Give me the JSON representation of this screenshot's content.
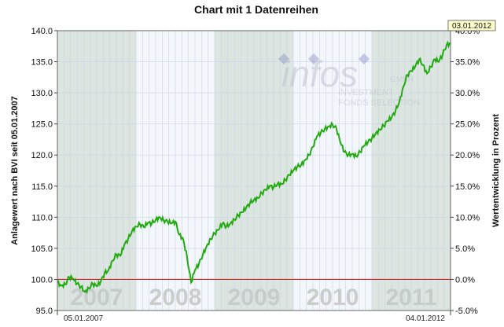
{
  "chart_data": {
    "type": "line",
    "title": "Chart mit 1 Datenreihen",
    "ylabel_left": "Anlagewert nach BVI seit 05.01.2007",
    "ylabel_right": "Wertentwicklung in Prozent",
    "ylim_left": [
      95.0,
      140.0
    ],
    "ylim_right": [
      -5.0,
      40.0
    ],
    "left_ticks": [
      "95.0",
      "100.0",
      "105.0",
      "110.0",
      "115.0",
      "120.0",
      "125.0",
      "130.0",
      "135.0",
      "140.0"
    ],
    "right_ticks": [
      "-5.0%",
      "0.0%",
      "5.0%",
      "10.0%",
      "15.0%",
      "20.0%",
      "25.0%",
      "30.0%",
      "35.0%",
      "40.0%"
    ],
    "x_start_label": "05.01.2007",
    "x_end_label": "04.01.2012",
    "end_date_marker": "03.01.2012",
    "year_labels": [
      "2007",
      "2008",
      "2009",
      "2010",
      "2011"
    ],
    "baseline_value": 100.0,
    "grid": true,
    "line_color": "#22aa11",
    "baseline_color": "#cc2222",
    "band_dark": "#dde5e0",
    "band_light": "#f3f7fc",
    "series": [
      {
        "x": [
          0,
          0.01,
          0.02,
          0.03,
          0.04,
          0.05,
          0.06,
          0.07,
          0.08,
          0.09,
          0.1,
          0.11,
          0.12,
          0.13,
          0.14,
          0.15,
          0.16,
          0.17,
          0.18,
          0.19,
          0.2,
          0.21,
          0.22,
          0.23,
          0.24,
          0.25,
          0.26,
          0.27,
          0.28,
          0.29,
          0.3,
          0.31,
          0.32,
          0.33,
          0.34,
          0.35,
          0.36,
          0.37,
          0.38,
          0.39,
          0.4,
          0.41,
          0.42,
          0.43,
          0.44,
          0.45,
          0.46,
          0.47,
          0.48,
          0.49,
          0.5,
          0.51,
          0.52,
          0.53,
          0.54,
          0.55,
          0.56,
          0.57,
          0.58,
          0.59,
          0.6,
          0.61,
          0.62,
          0.63,
          0.64,
          0.65,
          0.66,
          0.67,
          0.68,
          0.69,
          0.7,
          0.71,
          0.72,
          0.73,
          0.74,
          0.75,
          0.76,
          0.77,
          0.78,
          0.79,
          0.8,
          0.81,
          0.82,
          0.83,
          0.84,
          0.85,
          0.86,
          0.87,
          0.88,
          0.89,
          0.9,
          0.91,
          0.92,
          0.93,
          0.94,
          0.95,
          0.96,
          0.97,
          0.98,
          0.99,
          1.0
        ],
        "values": [
          99.5,
          99.0,
          99.2,
          100.4,
          100.1,
          99.3,
          98.8,
          98.0,
          98.6,
          99.3,
          98.9,
          99.6,
          101.0,
          101.5,
          103.0,
          104.0,
          103.8,
          105.5,
          106.5,
          107.8,
          108.5,
          108.9,
          108.4,
          109.1,
          109.0,
          109.6,
          110.0,
          109.5,
          109.3,
          109.0,
          109.3,
          107.2,
          106.5,
          103.5,
          99.5,
          101.5,
          102.5,
          104.0,
          105.4,
          106.5,
          107.4,
          108.0,
          109.0,
          108.5,
          109.0,
          109.6,
          110.3,
          110.8,
          111.5,
          112.3,
          112.8,
          113.1,
          113.9,
          114.4,
          115.0,
          114.8,
          115.4,
          115.3,
          116.0,
          116.8,
          117.5,
          118.1,
          118.4,
          119.2,
          120.0,
          121.3,
          123.0,
          123.6,
          124.2,
          124.6,
          124.9,
          124.2,
          122.0,
          120.5,
          120.0,
          120.2,
          119.8,
          120.5,
          121.5,
          122.1,
          122.7,
          123.5,
          124.1,
          124.7,
          125.5,
          126.0,
          127.1,
          128.6,
          131.0,
          132.9,
          133.5,
          134.2,
          135.4,
          134.5,
          133.1,
          134.2,
          135.4,
          135.0,
          136.2,
          137.7,
          138.0
        ]
      }
    ]
  }
}
